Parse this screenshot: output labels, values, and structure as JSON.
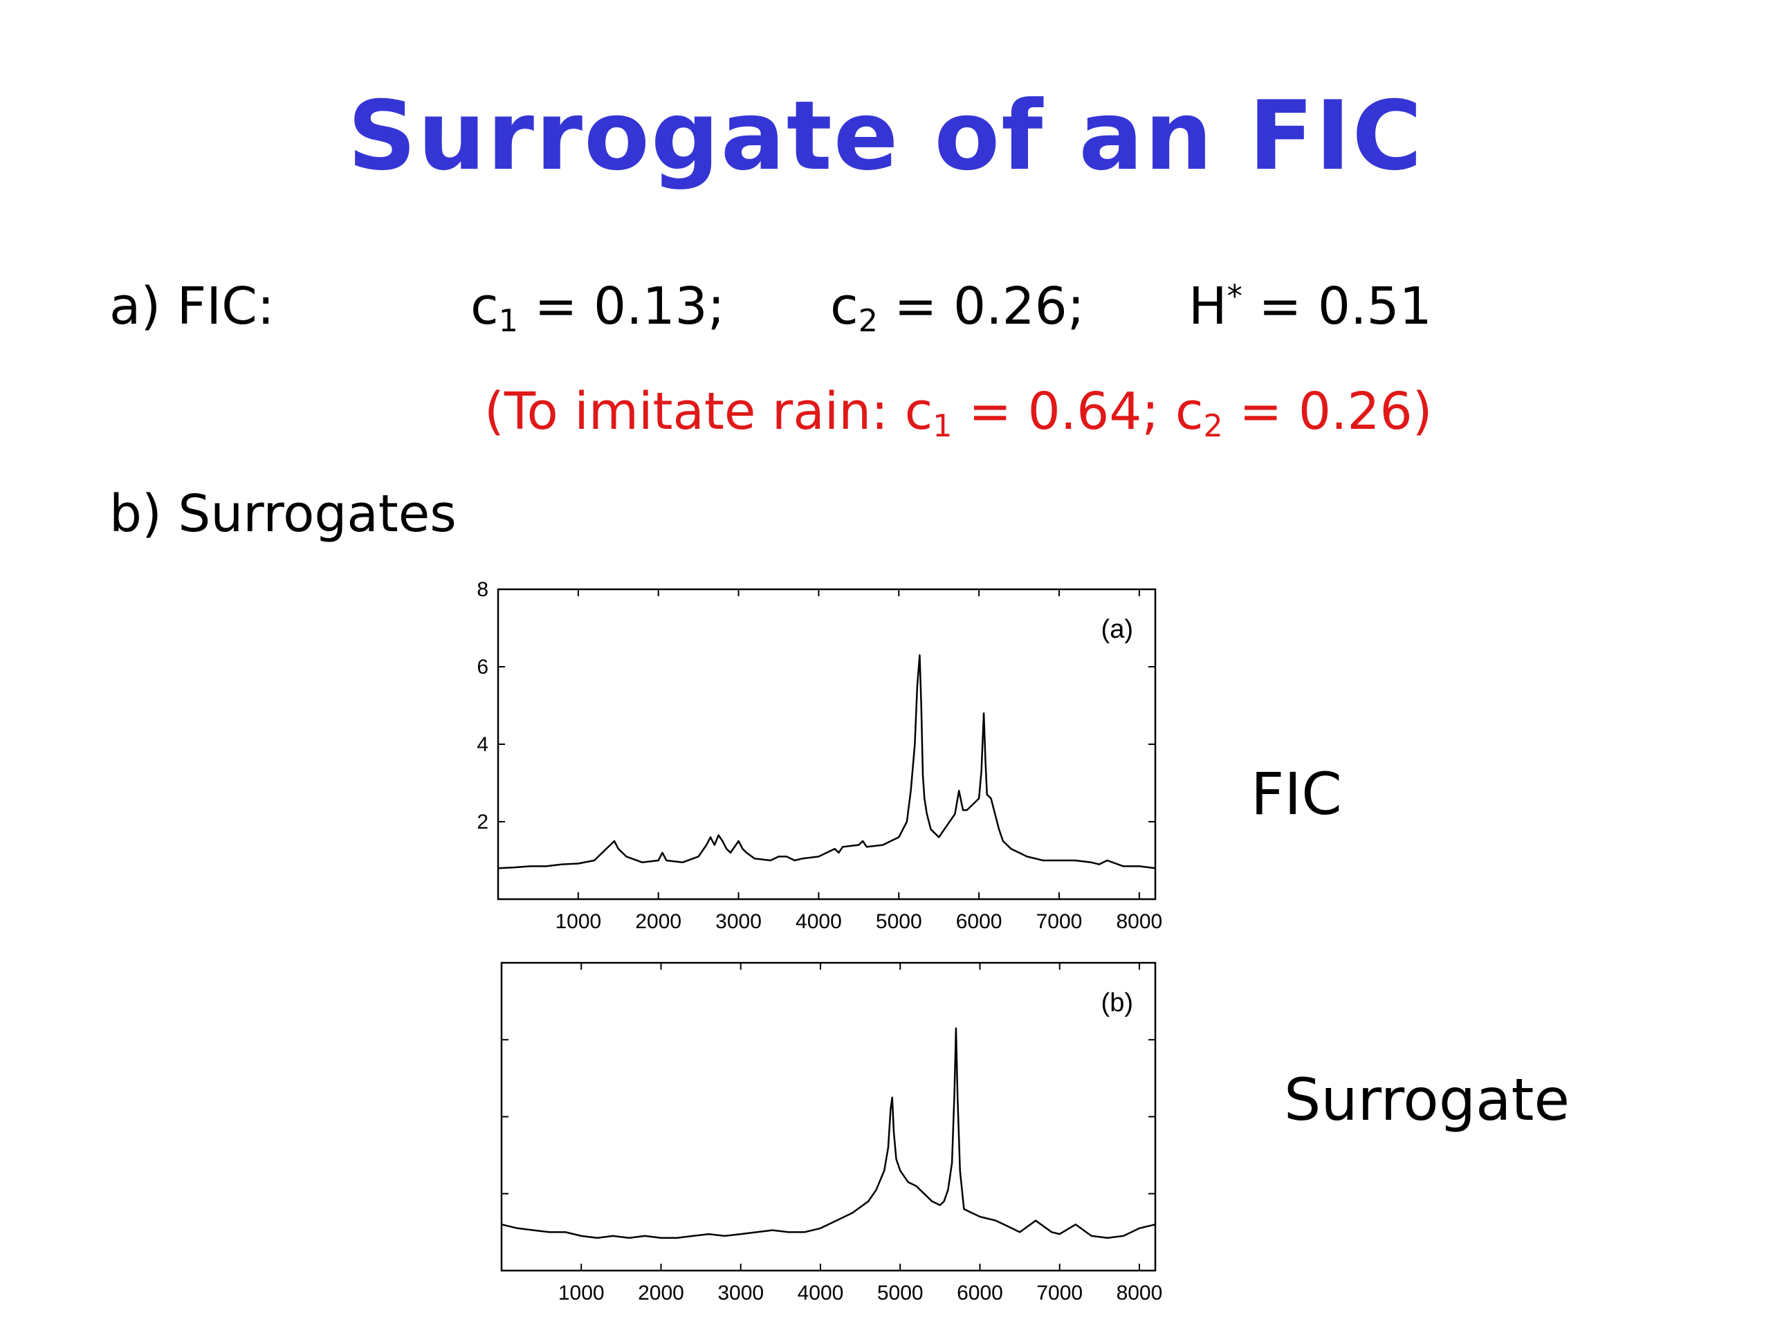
{
  "slide": {
    "title": "Surrogate of an FIC",
    "line_a": {
      "label": "a) FIC:",
      "c1_sym": "c",
      "c1_sub": "1",
      "c1_val": " = 0.13;",
      "c2_sym": "c",
      "c2_sub": "2",
      "c2_val": " = 0.26;",
      "h_sym": "H",
      "h_sup": "*",
      "h_val": " = 0.51"
    },
    "note": {
      "open": "(To imitate rain: ",
      "c1_sym": "c",
      "c1_sub": "1",
      "c1_val": " = 0.64; ",
      "c2_sym": "c",
      "c2_sub": "2",
      "c2_val": " = 0.26)"
    },
    "line_b": {
      "label": "b) Surrogates"
    },
    "label_top": "FIC",
    "label_bottom": "Surrogate"
  },
  "colors": {
    "title": "#3535d5",
    "note": "#e01818",
    "trace": "#000000"
  },
  "chart_data": [
    {
      "type": "line",
      "panel_label": "(a)",
      "xlim": [
        0,
        8200
      ],
      "ylim": [
        0,
        8
      ],
      "x_ticks": [
        1000,
        2000,
        3000,
        4000,
        5000,
        6000,
        7000,
        8000
      ],
      "y_ticks": [
        2,
        4,
        6,
        8
      ],
      "show_y_tick_labels": true,
      "grid": false,
      "series": [
        {
          "x": [
            0,
            200,
            400,
            600,
            800,
            1000,
            1200,
            1300,
            1400,
            1450,
            1500,
            1600,
            1800,
            2000,
            2050,
            2100,
            2300,
            2500,
            2600,
            2650,
            2700,
            2750,
            2800,
            2850,
            2900,
            3000,
            3050,
            3100,
            3200,
            3400,
            3500,
            3600,
            3700,
            3800,
            4000,
            4200,
            4250,
            4300,
            4500,
            4550,
            4600,
            4800,
            5000,
            5100,
            5150,
            5200,
            5230,
            5260,
            5280,
            5300,
            5320,
            5350,
            5400,
            5500,
            5600,
            5700,
            5750,
            5800,
            5850,
            5900,
            6000,
            6030,
            6060,
            6080,
            6100,
            6150,
            6200,
            6250,
            6300,
            6400,
            6500,
            6600,
            6700,
            6800,
            7000,
            7200,
            7400,
            7500,
            7600,
            7800,
            8000,
            8200
          ],
          "y": [
            0.8,
            0.82,
            0.85,
            0.85,
            0.9,
            0.92,
            1.0,
            1.2,
            1.4,
            1.5,
            1.3,
            1.1,
            0.95,
            1.0,
            1.2,
            1.0,
            0.95,
            1.1,
            1.4,
            1.6,
            1.4,
            1.65,
            1.5,
            1.3,
            1.2,
            1.5,
            1.3,
            1.2,
            1.05,
            1.0,
            1.1,
            1.1,
            1.0,
            1.05,
            1.1,
            1.3,
            1.2,
            1.35,
            1.4,
            1.5,
            1.35,
            1.4,
            1.6,
            2.0,
            2.8,
            4.0,
            5.5,
            6.3,
            5.0,
            3.2,
            2.6,
            2.2,
            1.8,
            1.6,
            1.9,
            2.2,
            2.8,
            2.3,
            2.3,
            2.4,
            2.6,
            3.3,
            4.8,
            3.6,
            2.7,
            2.6,
            2.2,
            1.8,
            1.5,
            1.3,
            1.2,
            1.1,
            1.05,
            1.0,
            1.0,
            1.0,
            0.95,
            0.9,
            1.0,
            0.85,
            0.85,
            0.8
          ]
        }
      ]
    },
    {
      "type": "line",
      "panel_label": "(b)",
      "xlim": [
        0,
        8200
      ],
      "ylim": [
        0,
        8
      ],
      "x_ticks": [
        1000,
        2000,
        3000,
        4000,
        5000,
        6000,
        7000,
        8000
      ],
      "y_ticks": [
        2,
        4,
        6,
        8
      ],
      "show_y_tick_labels": false,
      "grid": false,
      "series": [
        {
          "x": [
            0,
            200,
            400,
            600,
            800,
            1000,
            1200,
            1400,
            1600,
            1800,
            2000,
            2200,
            2400,
            2600,
            2800,
            3000,
            3200,
            3400,
            3600,
            3800,
            4000,
            4200,
            4400,
            4600,
            4700,
            4800,
            4850,
            4880,
            4900,
            4920,
            4950,
            5000,
            5100,
            5200,
            5300,
            5400,
            5500,
            5550,
            5600,
            5650,
            5680,
            5700,
            5720,
            5750,
            5800,
            5900,
            6000,
            6200,
            6400,
            6500,
            6700,
            6900,
            7000,
            7200,
            7400,
            7600,
            7800,
            8000,
            8200
          ],
          "y": [
            1.2,
            1.1,
            1.05,
            1.0,
            1.0,
            0.9,
            0.85,
            0.9,
            0.85,
            0.9,
            0.85,
            0.85,
            0.9,
            0.95,
            0.9,
            0.95,
            1.0,
            1.05,
            1.0,
            1.0,
            1.1,
            1.3,
            1.5,
            1.8,
            2.1,
            2.6,
            3.2,
            4.2,
            4.5,
            3.6,
            2.9,
            2.6,
            2.3,
            2.2,
            2.0,
            1.8,
            1.7,
            1.8,
            2.1,
            2.8,
            4.6,
            6.3,
            4.5,
            2.6,
            1.6,
            1.5,
            1.4,
            1.3,
            1.1,
            1.0,
            1.3,
            1.0,
            0.95,
            1.2,
            0.9,
            0.85,
            0.9,
            1.1,
            1.2
          ]
        }
      ]
    }
  ]
}
